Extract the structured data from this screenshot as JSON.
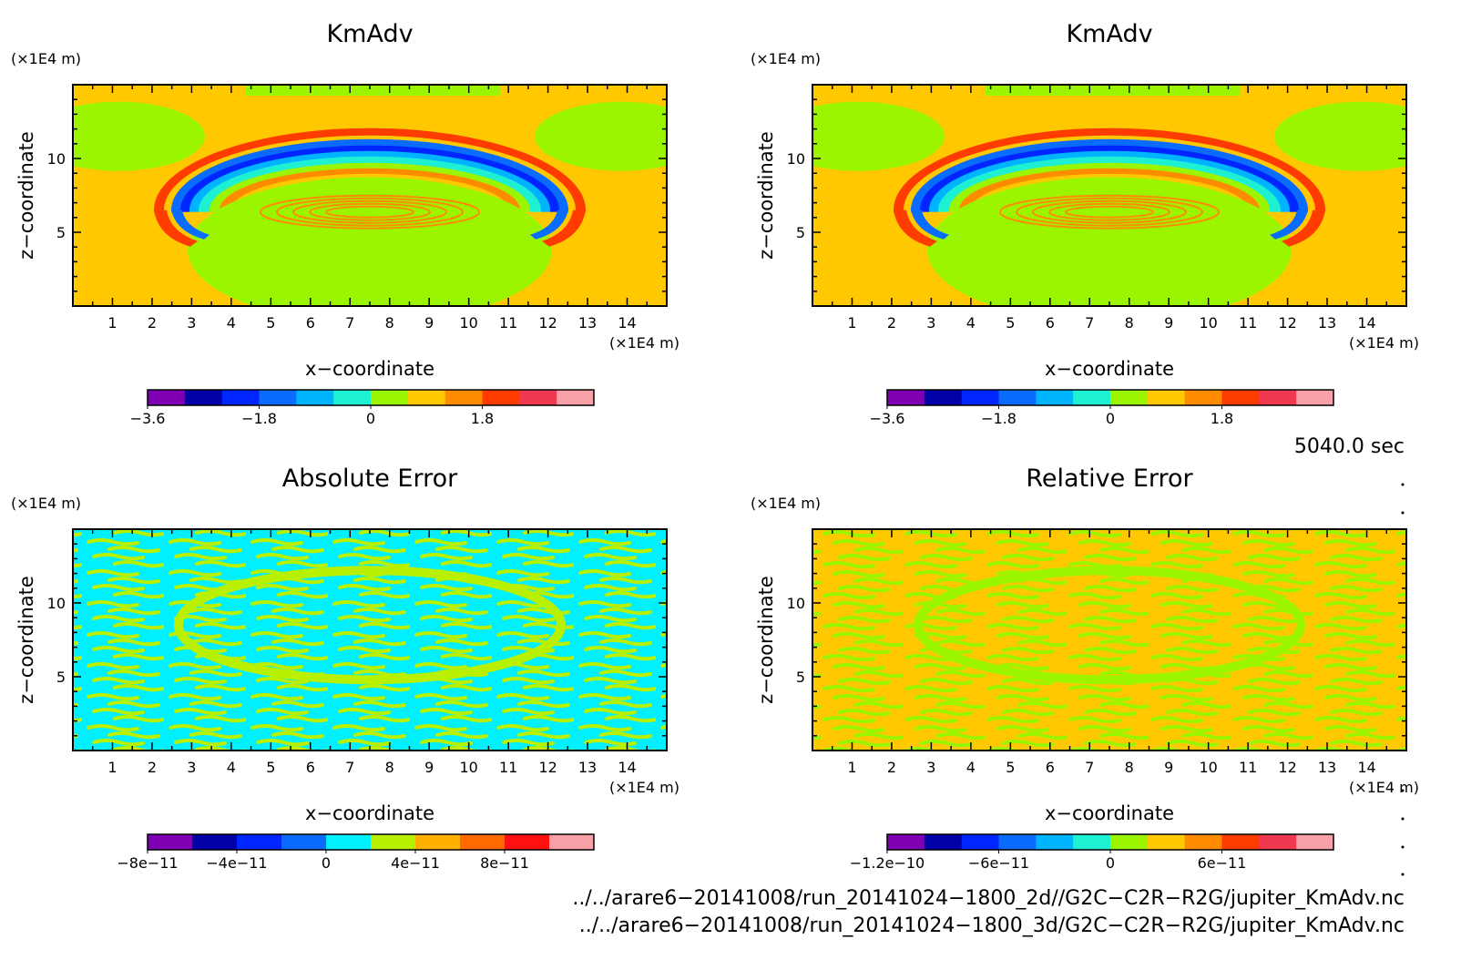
{
  "chart_data": [
    {
      "type": "heatmap",
      "title": "KmAdv",
      "xlabel": "x−coordinate",
      "ylabel": "z−coordinate",
      "x_unit": "(×1E4 m)",
      "y_unit": "(×1E4 m)",
      "xlim": [
        0,
        15
      ],
      "ylim": [
        0,
        15
      ],
      "x_ticks": [
        "1",
        "2",
        "3",
        "4",
        "5",
        "6",
        "7",
        "8",
        "9",
        "10",
        "11",
        "12",
        "13",
        "14"
      ],
      "y_ticks": [
        "5",
        "10"
      ],
      "pattern": "wave",
      "colorbar": {
        "colors": [
          "#7f00b2",
          "#0000a6",
          "#0026ff",
          "#0a6bff",
          "#00b3ff",
          "#1ef0d2",
          "#9cf500",
          "#ffc800",
          "#ff8c00",
          "#ff3c00",
          "#f03850",
          "#f8a0a8"
        ],
        "tick_labels": [
          "−3.6",
          "−1.8",
          "0",
          "1.8"
        ]
      }
    },
    {
      "type": "heatmap",
      "title": "KmAdv",
      "xlabel": "x−coordinate",
      "ylabel": "z−coordinate",
      "x_unit": "(×1E4 m)",
      "y_unit": "(×1E4 m)",
      "xlim": [
        0,
        15
      ],
      "ylim": [
        0,
        15
      ],
      "x_ticks": [
        "1",
        "2",
        "3",
        "4",
        "5",
        "6",
        "7",
        "8",
        "9",
        "10",
        "11",
        "12",
        "13",
        "14"
      ],
      "y_ticks": [
        "5",
        "10"
      ],
      "pattern": "wave",
      "colorbar": {
        "colors": [
          "#7f00b2",
          "#0000a6",
          "#0026ff",
          "#0a6bff",
          "#00b3ff",
          "#1ef0d2",
          "#9cf500",
          "#ffc800",
          "#ff8c00",
          "#ff3c00",
          "#f03850",
          "#f8a0a8"
        ],
        "tick_labels": [
          "−3.6",
          "−1.8",
          "0",
          "1.8"
        ]
      }
    },
    {
      "type": "heatmap",
      "title": "Absolute Error",
      "xlabel": "x−coordinate",
      "ylabel": "z−coordinate",
      "x_unit": "(×1E4 m)",
      "y_unit": "(×1E4 m)",
      "xlim": [
        0,
        15
      ],
      "ylim": [
        0,
        15
      ],
      "x_ticks": [
        "1",
        "2",
        "3",
        "4",
        "5",
        "6",
        "7",
        "8",
        "9",
        "10",
        "11",
        "12",
        "13",
        "14"
      ],
      "y_ticks": [
        "5",
        "10"
      ],
      "pattern": "abs",
      "colorbar": {
        "colors": [
          "#7f00b2",
          "#0000a6",
          "#0026ff",
          "#0a6bff",
          "#00f0ff",
          "#b8f000",
          "#ffb000",
          "#ff6a00",
          "#ff1010",
          "#f8a0a8"
        ],
        "tick_labels": [
          "−8e−11",
          "−4e−11",
          "0",
          "4e−11",
          "8e−11"
        ]
      }
    },
    {
      "type": "heatmap",
      "title": "Relative Error",
      "xlabel": "x−coordinate",
      "ylabel": "z−coordinate",
      "x_unit": "(×1E4 m)",
      "y_unit": "(×1E4 m)",
      "xlim": [
        0,
        15
      ],
      "ylim": [
        0,
        15
      ],
      "x_ticks": [
        "1",
        "2",
        "3",
        "4",
        "5",
        "6",
        "7",
        "8",
        "9",
        "10",
        "11",
        "12",
        "13",
        "14"
      ],
      "y_ticks": [
        "5",
        "10"
      ],
      "pattern": "rel",
      "colorbar": {
        "colors": [
          "#7f00b2",
          "#0000a6",
          "#0026ff",
          "#0a6bff",
          "#00b3ff",
          "#1ef0d2",
          "#9cf500",
          "#ffc800",
          "#ff8c00",
          "#ff3c00",
          "#f03850",
          "#f8a0a8"
        ],
        "tick_labels": [
          "−1.2e−10",
          "−6e−11",
          "0",
          "6e−11"
        ]
      }
    }
  ],
  "time_label": "5040.0 sec",
  "file_paths": [
    "../../arare6−20141008/run_20141024−1800_2d//G2C−C2R−R2G/jupiter_KmAdv.nc",
    "../../arare6−20141008/run_20141024−1800_3d/G2C−C2R−R2G/jupiter_KmAdv.nc"
  ]
}
